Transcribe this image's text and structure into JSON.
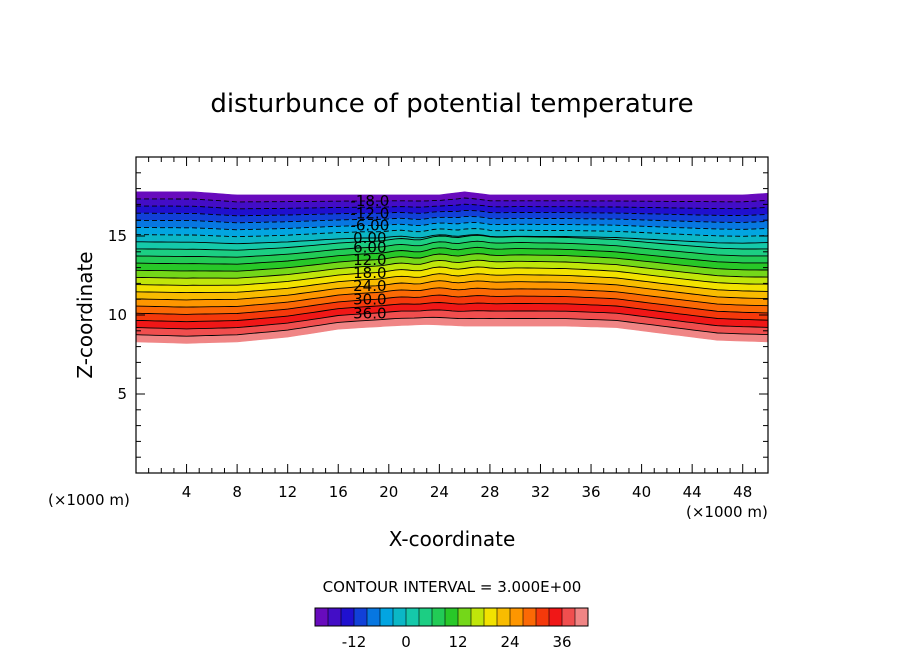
{
  "chart_data": {
    "type": "contour",
    "title": "disturbunce of potential temperature",
    "xlabel": "X-coordinate",
    "ylabel": "Z-coordinate",
    "x_unit": "(×1000 m)",
    "y_unit": "(×1000 m)",
    "xlim": [
      0,
      50
    ],
    "ylim": [
      0,
      20
    ],
    "xticks": [
      4,
      8,
      12,
      16,
      20,
      24,
      28,
      32,
      36,
      40,
      44,
      48
    ],
    "yticks": [
      5,
      10,
      15
    ],
    "contour_interval_text": "CONTOUR INTERVAL = 3.000E+00",
    "contour_interval": 3.0,
    "contour_labels": [
      "-18.0",
      "-12.0",
      "-6.00",
      "0.00",
      "6.00",
      "12.0",
      "18.0",
      "24.0",
      "30.0",
      "36.0"
    ],
    "contour_label_values": [
      -18,
      -12,
      -6,
      0,
      6,
      12,
      18,
      24,
      30,
      36
    ],
    "colorbar": {
      "ticks": [
        "-12",
        "0",
        "12",
        "24",
        "36"
      ],
      "tick_values": [
        -12,
        0,
        12,
        24,
        36
      ],
      "min": -21,
      "max": 42
    },
    "colormap": [
      "#7a0ab8",
      "#1a10d0",
      "#00a0e8",
      "#18d0a0",
      "#28c828",
      "#f0f000",
      "#ff8c00",
      "#f01010",
      "#f0a0a0"
    ],
    "field_extent": {
      "top_boundary": [
        [
          0,
          17.8
        ],
        [
          4.5,
          17.8
        ],
        [
          8,
          17.6
        ],
        [
          12,
          17.6
        ],
        [
          16,
          17.6
        ],
        [
          20,
          17.6
        ],
        [
          24,
          17.6
        ],
        [
          26,
          17.8
        ],
        [
          28,
          17.6
        ],
        [
          32,
          17.6
        ],
        [
          36,
          17.6
        ],
        [
          40,
          17.6
        ],
        [
          44,
          17.6
        ],
        [
          48,
          17.6
        ],
        [
          50,
          17.7
        ]
      ],
      "bottom_boundary": [
        [
          0,
          8.3
        ],
        [
          4,
          8.2
        ],
        [
          8,
          8.3
        ],
        [
          12,
          8.6
        ],
        [
          16,
          9.1
        ],
        [
          20,
          9.3
        ],
        [
          23,
          9.4
        ],
        [
          26,
          9.3
        ],
        [
          30,
          9.3
        ],
        [
          34,
          9.3
        ],
        [
          38,
          9.2
        ],
        [
          42,
          8.8
        ],
        [
          46,
          8.4
        ],
        [
          50,
          8.3
        ]
      ]
    },
    "representative_contours": [
      {
        "value": -18,
        "z_at_edges": 17.5,
        "z_at_center": 17.5
      },
      {
        "value": -12,
        "z_at_edges": 17.0,
        "z_at_center": 17.0
      },
      {
        "value": -6,
        "z_at_edges": 16.4,
        "z_at_center": 16.4
      },
      {
        "value": 0,
        "z_at_edges": 15.7,
        "z_at_center": 15.7
      },
      {
        "value": 6,
        "z_at_edges": 14.9,
        "z_at_center": 15.0
      },
      {
        "value": 12,
        "z_at_edges": 14.0,
        "z_at_center": 14.2
      },
      {
        "value": 18,
        "z_at_edges": 13.0,
        "z_at_center": 13.3
      },
      {
        "value": 24,
        "z_at_edges": 12.0,
        "z_at_center": 12.5
      },
      {
        "value": 30,
        "z_at_edges": 10.9,
        "z_at_center": 11.6
      },
      {
        "value": 36,
        "z_at_edges": 9.8,
        "z_at_center": 10.7
      }
    ],
    "grid": false
  }
}
